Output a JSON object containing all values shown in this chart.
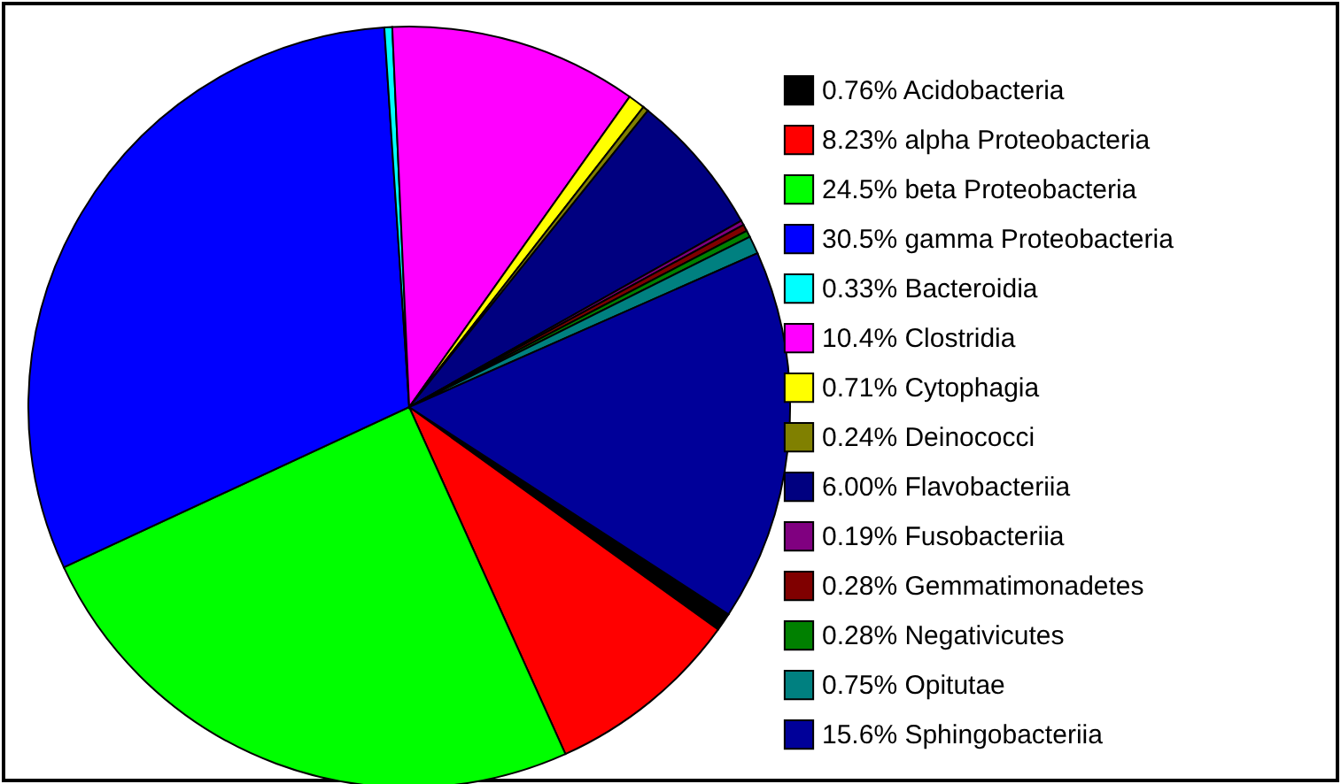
{
  "chart_data": {
    "type": "pie",
    "categories": [
      "Acidobacteria",
      "alpha Proteobacteria",
      "beta Proteobacteria",
      "gamma Proteobacteria",
      "Bacteroidia",
      "Clostridia",
      "Cytophagia",
      "Deinococci",
      "Flavobacteriia",
      "Fusobacteriia",
      "Gemmatimonadetes",
      "Negativicutes",
      "Opitutae",
      "Sphingobacteriia"
    ],
    "values": [
      0.76,
      8.23,
      24.5,
      30.5,
      0.33,
      10.4,
      0.71,
      0.24,
      6.0,
      0.19,
      0.28,
      0.28,
      0.75,
      15.6
    ],
    "value_labels": [
      "0.76%",
      "8.23%",
      "24.5%",
      "30.5%",
      "0.33%",
      "10.4%",
      "0.71%",
      "0.24%",
      "6.00%",
      "0.19%",
      "0.28%",
      "0.28%",
      "0.75%",
      "15.6%"
    ],
    "colors": [
      "#000000",
      "#ff0000",
      "#00ff00",
      "#0000ff",
      "#00ffff",
      "#ff00ff",
      "#ffff00",
      "#808000",
      "#000080",
      "#800080",
      "#800000",
      "#008000",
      "#008080",
      "#000099"
    ],
    "legend": "right"
  }
}
